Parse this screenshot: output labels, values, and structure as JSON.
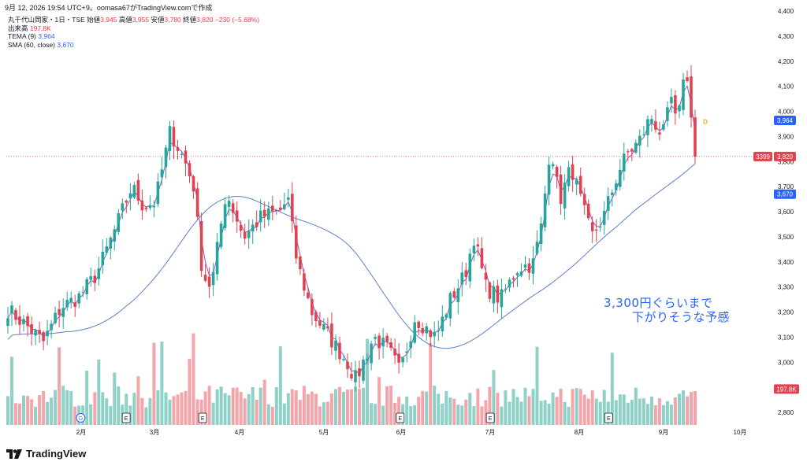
{
  "header": {
    "timestamp_line": "9月 12, 2026 19:54 UTC+9。oomasa67がTradingView.comで作成"
  },
  "legend": {
    "symbol": "丸千代山岡家・1日・TSE",
    "open_label": "始値",
    "open": "3,945",
    "high_label": "高値",
    "high": "3,955",
    "low_label": "安値",
    "low": "3,780",
    "close_label": "終値",
    "close": "3,820",
    "change": "−230 (−5.68%)",
    "volume_label": "出来高",
    "volume": "197.8K",
    "tema_label": "TEMA (9)",
    "tema_value": "3,964",
    "sma_label": "SMA (60, close)",
    "sma_value": "3,670"
  },
  "annotation": {
    "line1": "3,300円ぐらいまで",
    "line2": "下がりそうな予感"
  },
  "brand": {
    "name": "TradingView"
  },
  "colors": {
    "up": "#26a69a",
    "down": "#e0434f",
    "up_vol": "#8fd0c7",
    "down_vol": "#f4a5a9",
    "sma": "#5b7fc7",
    "tema": "#8b57c9",
    "accent": "#2962ff"
  },
  "chart_data": {
    "type": "candlestick",
    "title": "丸千代山岡家・1日・TSE",
    "y_range": [
      2750,
      4400
    ],
    "y_ticks": [
      "2,800",
      "2,900",
      "3,000",
      "3,100",
      "3,200",
      "3,300",
      "3,400",
      "3,500",
      "3,600",
      "3,700",
      "3,800",
      "3,900",
      "4,000",
      "4,100",
      "4,200",
      "4,300",
      "4,400"
    ],
    "x_ticks": [
      "2月",
      "3月",
      "4月",
      "5月",
      "6月",
      "7月",
      "8月",
      "9月",
      "10月"
    ],
    "price_labels": {
      "last": "3,820",
      "countdown": "3399",
      "tema": "3,964",
      "sma": "3,670",
      "volume": "197.8K"
    },
    "event_markers": [
      {
        "label": "D",
        "index": 80
      },
      {
        "label": "E",
        "index": 130
      },
      {
        "label": "E",
        "index": 214
      },
      {
        "label": "E",
        "index": 431
      },
      {
        "label": "E",
        "index": 530
      },
      {
        "label": "E",
        "index": 660
      }
    ],
    "future_dividend_marker": "D",
    "anchors": [
      {
        "d": 0,
        "p": 3210
      },
      {
        "d": 12,
        "p": 3150
      },
      {
        "d": 24,
        "p": 3080
      },
      {
        "d": 36,
        "p": 3220
      },
      {
        "d": 48,
        "p": 3260
      },
      {
        "d": 60,
        "p": 3350
      },
      {
        "d": 72,
        "p": 3520
      },
      {
        "d": 84,
        "p": 3700
      },
      {
        "d": 92,
        "p": 3620
      },
      {
        "d": 100,
        "p": 3640
      },
      {
        "d": 110,
        "p": 3920
      },
      {
        "d": 120,
        "p": 3800
      },
      {
        "d": 126,
        "p": 3700
      },
      {
        "d": 132,
        "p": 3350
      },
      {
        "d": 138,
        "p": 3300
      },
      {
        "d": 148,
        "p": 3680
      },
      {
        "d": 160,
        "p": 3500
      },
      {
        "d": 172,
        "p": 3580
      },
      {
        "d": 184,
        "p": 3600
      },
      {
        "d": 190,
        "p": 3650
      },
      {
        "d": 196,
        "p": 3400
      },
      {
        "d": 206,
        "p": 3200
      },
      {
        "d": 218,
        "p": 3100
      },
      {
        "d": 230,
        "p": 3000
      },
      {
        "d": 236,
        "p": 2930
      },
      {
        "d": 248,
        "p": 3100
      },
      {
        "d": 258,
        "p": 3050
      },
      {
        "d": 266,
        "p": 2960
      },
      {
        "d": 276,
        "p": 3180
      },
      {
        "d": 290,
        "p": 3100
      },
      {
        "d": 300,
        "p": 3250
      },
      {
        "d": 310,
        "p": 3350
      },
      {
        "d": 316,
        "p": 3500
      },
      {
        "d": 324,
        "p": 3300
      },
      {
        "d": 334,
        "p": 3250
      },
      {
        "d": 346,
        "p": 3380
      },
      {
        "d": 356,
        "p": 3390
      },
      {
        "d": 362,
        "p": 3550
      },
      {
        "d": 368,
        "p": 3880
      },
      {
        "d": 374,
        "p": 3640
      },
      {
        "d": 382,
        "p": 3780
      },
      {
        "d": 390,
        "p": 3610
      },
      {
        "d": 396,
        "p": 3500
      },
      {
        "d": 404,
        "p": 3580
      },
      {
        "d": 414,
        "p": 3760
      },
      {
        "d": 420,
        "p": 3830
      },
      {
        "d": 428,
        "p": 3880
      },
      {
        "d": 436,
        "p": 3980
      },
      {
        "d": 444,
        "p": 3900
      },
      {
        "d": 450,
        "p": 4050
      },
      {
        "d": 454,
        "p": 3920
      },
      {
        "d": 458,
        "p": 4150
      },
      {
        "d": 462,
        "p": 4090
      },
      {
        "d": 466,
        "p": 3820
      }
    ],
    "volume_base": 2800,
    "volume_max": 3120
  }
}
